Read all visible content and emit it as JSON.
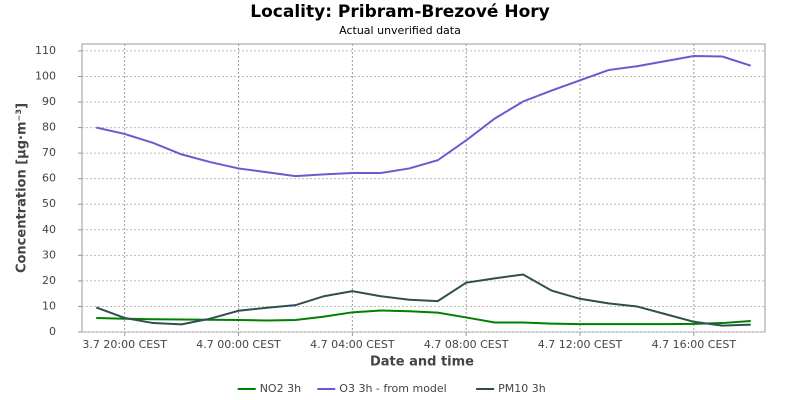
{
  "chart_data": {
    "type": "line",
    "title": "Locality: Pribram-Brezové Hory",
    "subtitle": "Actual unverified data",
    "x_label": "Date and time",
    "y_label": "Concentration [µg·m⁻³]",
    "categories": [
      null,
      "3.7 20:00 CEST",
      null,
      null,
      null,
      "4.7 00:00 CEST",
      null,
      null,
      null,
      "4.7 04:00 CEST",
      null,
      null,
      null,
      "4.7 08:00 CEST",
      null,
      null,
      null,
      "4.7 12:00 CEST",
      null,
      null,
      null,
      "4.7 16:00 CEST",
      null,
      null
    ],
    "series": [
      {
        "name": "NO2 3h",
        "color": "#008000",
        "values": [
          5.5,
          5.2,
          5.0,
          4.9,
          4.8,
          4.7,
          4.5,
          4.7,
          6.0,
          7.7,
          8.4,
          8.1,
          7.6,
          5.7,
          3.7,
          3.7,
          3.3,
          3.1,
          3.1,
          3.1,
          3.1,
          3.2,
          3.5,
          4.3
        ]
      },
      {
        "name": "O3 3h - from model",
        "color": "#6a5acd",
        "values": [
          80,
          77.5,
          74,
          69.5,
          66.5,
          64,
          62.5,
          61,
          61.7,
          62.2,
          62.2,
          64,
          67.2,
          75,
          83.5,
          90.2,
          94.5,
          98.5,
          102.5,
          104,
          106,
          108,
          107.8,
          104.2
        ]
      },
      {
        "name": "PM10 3h",
        "color": "#2f4f4f",
        "values": [
          9.6,
          5.5,
          3.5,
          3.0,
          5.2,
          8.3,
          9.5,
          10.5,
          14,
          16,
          14,
          12.6,
          12.1,
          19.3,
          21,
          22.5,
          16.2,
          13,
          11.2,
          10,
          7,
          4,
          2.5,
          2.9
        ]
      }
    ],
    "ylim": [
      0,
      112.7
    ],
    "yticks": [
      0,
      10,
      20,
      30,
      40,
      50,
      60,
      70,
      80,
      90,
      100,
      110
    ],
    "grid": true,
    "legend": "bottom"
  }
}
